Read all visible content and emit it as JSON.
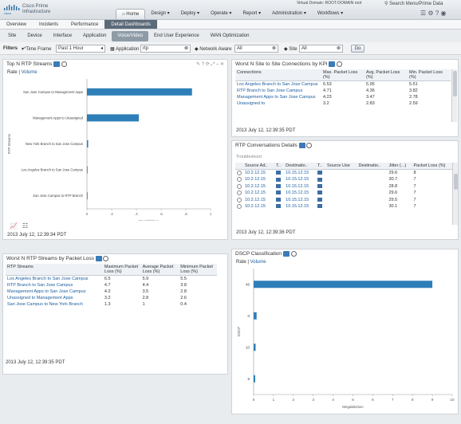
{
  "header": {
    "brand_line1": "Cisco Prime",
    "brand_line2": "Infrastructure",
    "nav": [
      "Home",
      "Design",
      "Deploy",
      "Operate",
      "Report",
      "Administration",
      "Workflows"
    ],
    "virtual_domain": "Virtual Domain: ROOT-DOMAIN   root",
    "search_placeholder": "Search Menu/Prime Data"
  },
  "subnav": [
    "Overview",
    "Incidents",
    "Performance",
    "Detail Dashboards"
  ],
  "tabs": [
    "Site",
    "Device",
    "Interface",
    "Application",
    "Voice/Video",
    "End User Experience",
    "WAN Optimization"
  ],
  "filters": {
    "label": "Filters",
    "time_label": "*Time Frame",
    "time_value": "Past 1 Hour",
    "app_label": "Application",
    "app_value": "rtp",
    "network_label": "Network Aware",
    "network_value": "All",
    "site_label": "Site",
    "site_value": "All",
    "go": "Go"
  },
  "rtp_streams": {
    "title": "Top N RTP Streams",
    "rate": "Rate",
    "volume": "Volume",
    "timestamp": "2013 July 12, 12:39:34 PDT"
  },
  "site_connections": {
    "title": "Worst N Site to Site Connections by KPI",
    "headers": [
      "Connections",
      "Max. Packet Loss (%)",
      "Avg. Packet Loss (%)",
      "Min. Packet Loss (%)"
    ],
    "rows": [
      [
        "Los Angeles Branch to San Jose Campus",
        "6.53",
        "5.95",
        "5.51"
      ],
      [
        "RTP Branch to San Jose Campus",
        "4.71",
        "4.36",
        "3.82"
      ],
      [
        "Management Apps to San Jose Campus",
        "4.23",
        "3.47",
        "2.78"
      ],
      [
        "Unassigned to",
        "3.2",
        "2.83",
        "2.59"
      ]
    ],
    "timestamp": "2013 July 12, 12:39:35 PDT"
  },
  "rtp_conversations": {
    "title": "RTP Conversations Details",
    "troubleshoot": "Troubleshoot",
    "headers": [
      "Source Ad..",
      "T..",
      "Destinatio..",
      "T..",
      "Source Use",
      "Destinatio..",
      "Jitter (...)",
      "Packet Loss (%)",
      "M"
    ],
    "rows": [
      [
        "10.2.12.15",
        "10.15.12.15",
        "29.6",
        "8"
      ],
      [
        "10.2.12.15",
        "10.15.12.15",
        "30.7",
        "7"
      ],
      [
        "10.2.12.15",
        "10.15.12.15",
        "28.8",
        "7"
      ],
      [
        "10.2.12.15",
        "10.15.12.15",
        "29.6",
        "7"
      ],
      [
        "10.2.12.15",
        "10.15.12.15",
        "29.5",
        "7"
      ],
      [
        "10.2.12.15",
        "10.15.12.15",
        "30.1",
        "7"
      ]
    ],
    "timestamp": "2013 July 12, 12:39:36 PDT"
  },
  "worst_streams": {
    "title": "Worst N RTP Streams by Packet Loss",
    "headers": [
      "RTP Streams",
      "Maximum Packet Loss (%)",
      "Average Packet Loss (%)",
      "Minimum Packet Loss (%)"
    ],
    "rows": [
      [
        "Los Angeles Branch to San Jose Campus",
        "6.5",
        "5.9",
        "5.5"
      ],
      [
        "RTP Branch to San Jose Campus",
        "4.7",
        "4.4",
        "3.8"
      ],
      [
        "Management Apps to San Jose Campus",
        "4.2",
        "3.5",
        "2.8"
      ],
      [
        "Unassigned to Management Apps",
        "3.2",
        "2.8",
        "2.6"
      ],
      [
        "San Jose Campus to New York Branch",
        "1.3",
        "1",
        "0.4"
      ]
    ],
    "timestamp": "2013 July 12, 12:39:35 PDT"
  },
  "dscp": {
    "title": "DSCP Classification",
    "rate": "Rate",
    "volume": "Volume"
  },
  "chart_data": [
    {
      "type": "bar",
      "orientation": "horizontal",
      "title": "Top N RTP Streams",
      "xlabel": "Megabits/sec",
      "ylabel": "RTP Streams",
      "categories": [
        "San Jose Campus to Management Apps",
        "Management Apps to Unassigned",
        "New York Branch to San Jose Campus",
        "Los Angeles Branch to San Jose Campus",
        "San Jose Campus to RTP Branch"
      ],
      "values": [
        0.85,
        0.42,
        0.01,
        0.005,
        0.003
      ],
      "xlim": [
        0,
        1.0
      ],
      "xticks": [
        "0",
        ".2",
        ".4",
        ".6",
        ".8",
        "1"
      ],
      "color": "#2e7fb8"
    },
    {
      "type": "bar",
      "orientation": "horizontal",
      "title": "DSCP Classification",
      "xlabel": "Megabits/sec",
      "ylabel": "DSCP",
      "categories": [
        "46",
        "0",
        "10",
        "8"
      ],
      "values": [
        9.0,
        0.15,
        0.1,
        0.08
      ],
      "xlim": [
        0,
        10
      ],
      "xticks": [
        "0",
        "1",
        "2",
        "3",
        "4",
        "5",
        "6",
        "7",
        "8",
        "9",
        "10"
      ],
      "color": "#2e7fb8"
    }
  ]
}
